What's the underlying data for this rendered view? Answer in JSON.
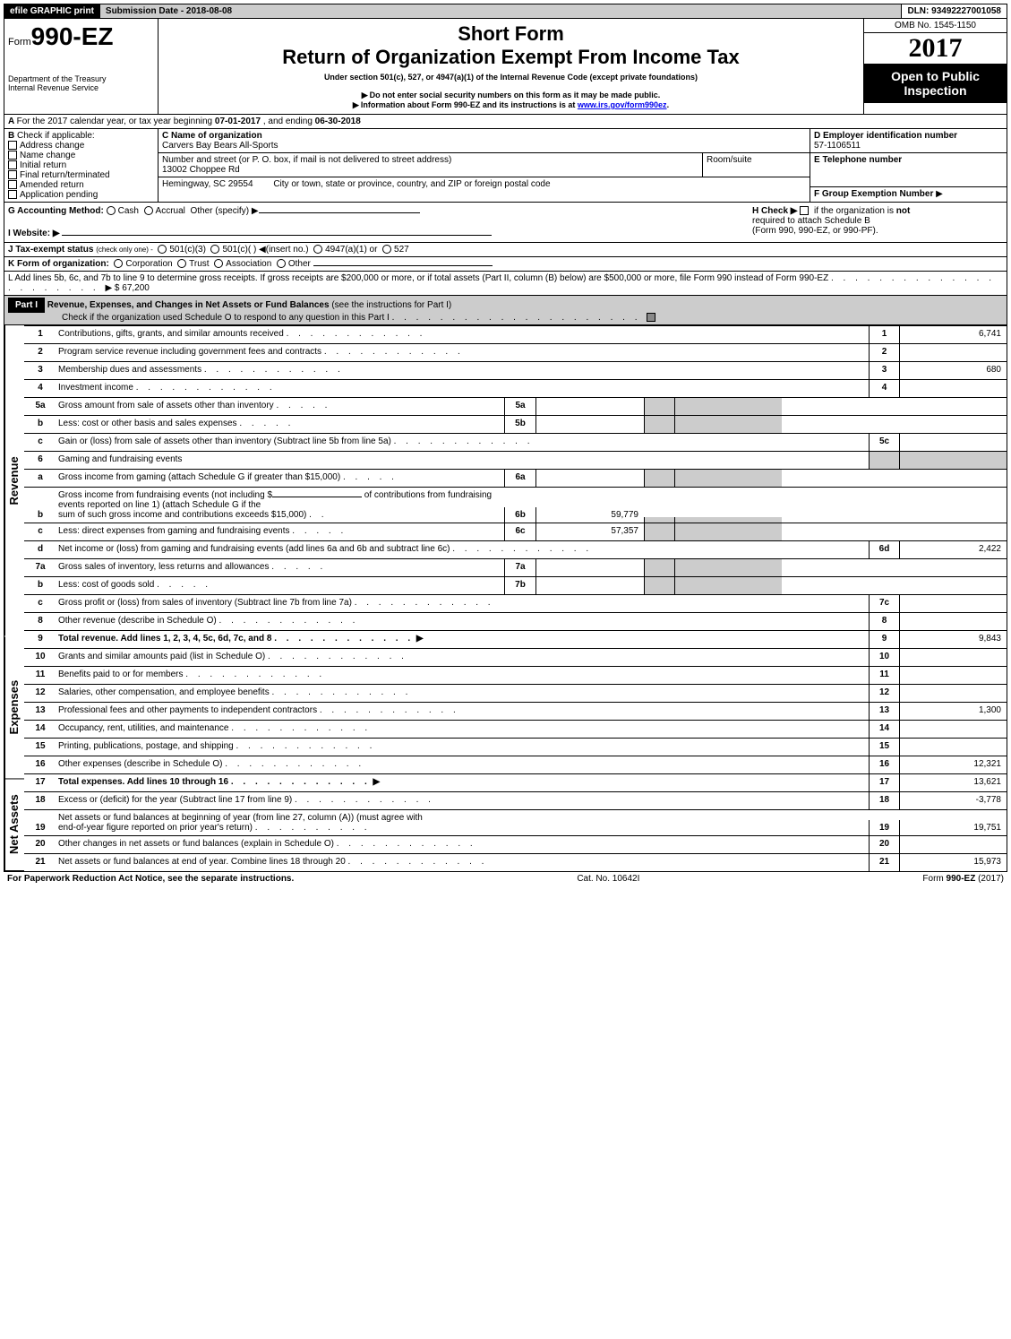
{
  "topbar": {
    "efile": "efile GRAPHIC print",
    "submission": "Submission Date - 2018-08-08",
    "dln": "DLN: 93492227001058"
  },
  "header": {
    "form_prefix": "Form",
    "form_number": "990-EZ",
    "dept1": "Department of the Treasury",
    "dept2": "Internal Revenue Service",
    "title_short": "Short Form",
    "title_main": "Return of Organization Exempt From Income Tax",
    "subtitle": "Under section 501(c), 527, or 4947(a)(1) of the Internal Revenue Code (except private foundations)",
    "note1": "Do not enter social security numbers on this form as it may be made public.",
    "note2_pre": "Information about Form 990-EZ and its instructions is at ",
    "note2_link": "www.irs.gov/form990ez",
    "note2_post": ".",
    "omb": "OMB No. 1545-1150",
    "year": "2017",
    "open": "Open to Public Inspection"
  },
  "A": {
    "text_pre": "For the 2017 calendar year, or tax year beginning ",
    "begin": "07-01-2017",
    "mid": ", and ending ",
    "end": "06-30-2018"
  },
  "B": {
    "label": "Check if applicable:",
    "opts": [
      "Address change",
      "Name change",
      "Initial return",
      "Final return/terminated",
      "Amended return",
      "Application pending"
    ]
  },
  "C": {
    "label": "C Name of organization",
    "org": "Carvers Bay Bears All-Sports",
    "addr_label": "Number and street (or P. O. box, if mail is not delivered to street address)",
    "addr": "13002 Choppee Rd",
    "room_label": "Room/suite",
    "city": "Hemingway, SC  29554",
    "city_label": "City or town, state or province, country, and ZIP or foreign postal code"
  },
  "D": {
    "label": "D Employer identification number",
    "value": "57-1106511"
  },
  "E": {
    "label": "E Telephone number"
  },
  "F": {
    "label": "F Group Exemption Number"
  },
  "G": {
    "label": "G Accounting Method:",
    "cash": "Cash",
    "accrual": "Accrual",
    "other": "Other (specify) ▶"
  },
  "H": {
    "pre": "H   Check ▶",
    "text1": "if the organization is",
    "not": "not",
    "text2": "required to attach Schedule B",
    "text3": "(Form 990, 990-EZ, or 990-PF)."
  },
  "I": {
    "label": "I Website: ▶"
  },
  "J": {
    "label": "J Tax-exempt status",
    "sub": "(check only one) -",
    "o1": "501(c)(3)",
    "o2": "501(c)(  ) ◀(insert no.)",
    "o3": "4947(a)(1) or",
    "o4": "527"
  },
  "K": {
    "label": "K Form of organization:",
    "opts": [
      "Corporation",
      "Trust",
      "Association",
      "Other"
    ]
  },
  "L": {
    "text": "L Add lines 5b, 6c, and 7b to line 9 to determine gross receipts. If gross receipts are $200,000 or more, or if total assets (Part II, column (B) below) are $500,000 or more, file Form 990 instead of Form 990-EZ",
    "amount": "▶ $ 67,200"
  },
  "partI": {
    "label": "Part I",
    "title": "Revenue, Expenses, and Changes in Net Assets or Fund Balances",
    "sub": "(see the instructions for Part I)",
    "check_text": "Check if the organization used Schedule O to respond to any question in this Part I"
  },
  "sections": {
    "revenue": "Revenue",
    "expenses": "Expenses",
    "netassets": "Net Assets"
  },
  "lines": {
    "l1": {
      "n": "1",
      "d": "Contributions, gifts, grants, and similar amounts received",
      "box": "1",
      "val": "6,741"
    },
    "l2": {
      "n": "2",
      "d": "Program service revenue including government fees and contracts",
      "box": "2",
      "val": ""
    },
    "l3": {
      "n": "3",
      "d": "Membership dues and assessments",
      "box": "3",
      "val": "680"
    },
    "l4": {
      "n": "4",
      "d": "Investment income",
      "box": "4",
      "val": ""
    },
    "l5a": {
      "n": "5a",
      "d": "Gross amount from sale of assets other than inventory",
      "sub": "5a"
    },
    "l5b": {
      "n": "b",
      "d": "Less: cost or other basis and sales expenses",
      "sub": "5b"
    },
    "l5c": {
      "n": "c",
      "d": "Gain or (loss) from sale of assets other than inventory (Subtract line 5b from line 5a)",
      "box": "5c",
      "val": ""
    },
    "l6": {
      "n": "6",
      "d": "Gaming and fundraising events"
    },
    "l6a": {
      "n": "a",
      "d": "Gross income from gaming (attach Schedule G if greater than $15,000)",
      "sub": "6a"
    },
    "l6b": {
      "n": "b",
      "d1": "Gross income from fundraising events (not including $",
      "d2": "of contributions from fundraising events reported on line 1) (attach Schedule G if the",
      "d3": "sum of such gross income and contributions exceeds $15,000)",
      "sub": "6b",
      "sval": "59,779"
    },
    "l6c": {
      "n": "c",
      "d": "Less: direct expenses from gaming and fundraising events",
      "sub": "6c",
      "sval": "57,357"
    },
    "l6d": {
      "n": "d",
      "d": "Net income or (loss) from gaming and fundraising events (add lines 6a and 6b and subtract line 6c)",
      "box": "6d",
      "val": "2,422"
    },
    "l7a": {
      "n": "7a",
      "d": "Gross sales of inventory, less returns and allowances",
      "sub": "7a"
    },
    "l7b": {
      "n": "b",
      "d": "Less: cost of goods sold",
      "sub": "7b"
    },
    "l7c": {
      "n": "c",
      "d": "Gross profit or (loss) from sales of inventory (Subtract line 7b from line 7a)",
      "box": "7c",
      "val": ""
    },
    "l8": {
      "n": "8",
      "d": "Other revenue (describe in Schedule O)",
      "box": "8",
      "val": ""
    },
    "l9": {
      "n": "9",
      "d": "Total revenue. Add lines 1, 2, 3, 4, 5c, 6d, 7c, and 8",
      "box": "9",
      "val": "9,843"
    },
    "l10": {
      "n": "10",
      "d": "Grants and similar amounts paid (list in Schedule O)",
      "box": "10",
      "val": ""
    },
    "l11": {
      "n": "11",
      "d": "Benefits paid to or for members",
      "box": "11",
      "val": ""
    },
    "l12": {
      "n": "12",
      "d": "Salaries, other compensation, and employee benefits",
      "box": "12",
      "val": ""
    },
    "l13": {
      "n": "13",
      "d": "Professional fees and other payments to independent contractors",
      "box": "13",
      "val": "1,300"
    },
    "l14": {
      "n": "14",
      "d": "Occupancy, rent, utilities, and maintenance",
      "box": "14",
      "val": ""
    },
    "l15": {
      "n": "15",
      "d": "Printing, publications, postage, and shipping",
      "box": "15",
      "val": ""
    },
    "l16": {
      "n": "16",
      "d": "Other expenses (describe in Schedule O)",
      "box": "16",
      "val": "12,321"
    },
    "l17": {
      "n": "17",
      "d": "Total expenses. Add lines 10 through 16",
      "box": "17",
      "val": "13,621"
    },
    "l18": {
      "n": "18",
      "d": "Excess or (deficit) for the year (Subtract line 17 from line 9)",
      "box": "18",
      "val": "-3,778"
    },
    "l19": {
      "n": "19",
      "d1": "Net assets or fund balances at beginning of year (from line 27, column (A)) (must agree with",
      "d2": "end-of-year figure reported on prior year's return)",
      "box": "19",
      "val": "19,751"
    },
    "l20": {
      "n": "20",
      "d": "Other changes in net assets or fund balances (explain in Schedule O)",
      "box": "20",
      "val": ""
    },
    "l21": {
      "n": "21",
      "d": "Net assets or fund balances at end of year. Combine lines 18 through 20",
      "box": "21",
      "val": "15,973"
    }
  },
  "footer": {
    "left": "For Paperwork Reduction Act Notice, see the separate instructions.",
    "mid": "Cat. No. 10642I",
    "right_pre": "Form ",
    "right_b": "990-EZ",
    "right_post": " (2017)"
  },
  "colors": {
    "black": "#000000",
    "gray": "#cccccc",
    "link": "#0000ee"
  }
}
